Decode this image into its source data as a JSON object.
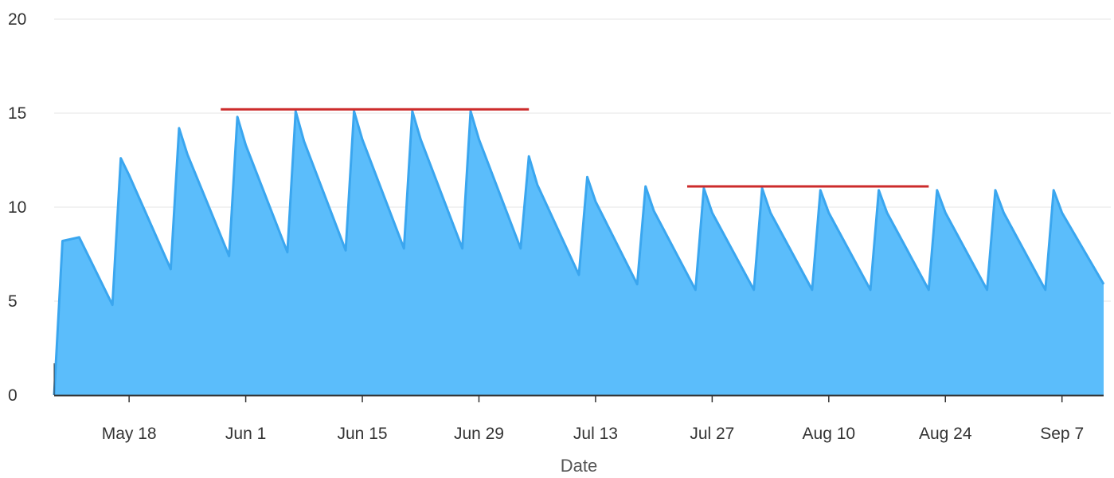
{
  "chart_data": {
    "type": "area",
    "xlabel": "Date",
    "ylabel": "",
    "ylim": [
      0,
      20
    ],
    "y_ticks": [
      "0",
      "5",
      "10",
      "15",
      "20"
    ],
    "x_tick_labels": [
      "May 18",
      "Jun 1",
      "Jun 15",
      "Jun 29",
      "Jul 13",
      "Jul 27",
      "Aug 10",
      "Aug 24",
      "Sep 7"
    ],
    "x_tick_dates": [
      "2020-05-18",
      "2020-06-01",
      "2020-06-15",
      "2020-06-29",
      "2020-07-13",
      "2020-07-27",
      "2020-08-10",
      "2020-08-24",
      "2020-09-07"
    ],
    "x_range": [
      "2020-05-09",
      "2020-09-12"
    ],
    "grid": "horizontal",
    "colors": {
      "area_fill": "#5bbdfb",
      "area_line": "#3aa6ef",
      "reference_line": "#cc2b2b",
      "grid": "#e6e6e6",
      "axis": "#333333"
    },
    "series": [
      {
        "points": [
          [
            "2020-05-09",
            0.0
          ],
          [
            "2020-05-10",
            8.2
          ],
          [
            "2020-05-12",
            8.4
          ],
          [
            "2020-05-16",
            4.8
          ],
          [
            "2020-05-17",
            12.6
          ],
          [
            "2020-05-18",
            11.7
          ],
          [
            "2020-05-23",
            6.7
          ],
          [
            "2020-05-24",
            14.2
          ],
          [
            "2020-05-25",
            12.8
          ],
          [
            "2020-05-30",
            7.4
          ],
          [
            "2020-05-31",
            14.8
          ],
          [
            "2020-06-01",
            13.3
          ],
          [
            "2020-06-06",
            7.6
          ],
          [
            "2020-06-07",
            15.1
          ],
          [
            "2020-06-08",
            13.5
          ],
          [
            "2020-06-13",
            7.7
          ],
          [
            "2020-06-14",
            15.1
          ],
          [
            "2020-06-15",
            13.6
          ],
          [
            "2020-06-20",
            7.8
          ],
          [
            "2020-06-21",
            15.1
          ],
          [
            "2020-06-22",
            13.6
          ],
          [
            "2020-06-27",
            7.8
          ],
          [
            "2020-06-28",
            15.1
          ],
          [
            "2020-06-29",
            13.6
          ],
          [
            "2020-07-04",
            7.8
          ],
          [
            "2020-07-05",
            12.7
          ],
          [
            "2020-07-06",
            11.2
          ],
          [
            "2020-07-11",
            6.4
          ],
          [
            "2020-07-12",
            11.6
          ],
          [
            "2020-07-13",
            10.3
          ],
          [
            "2020-07-18",
            5.9
          ],
          [
            "2020-07-19",
            11.1
          ],
          [
            "2020-07-20",
            9.8
          ],
          [
            "2020-07-25",
            5.6
          ],
          [
            "2020-07-26",
            11.0
          ],
          [
            "2020-07-27",
            9.7
          ],
          [
            "2020-08-01",
            5.6
          ],
          [
            "2020-08-02",
            11.0
          ],
          [
            "2020-08-03",
            9.7
          ],
          [
            "2020-08-08",
            5.6
          ],
          [
            "2020-08-09",
            10.9
          ],
          [
            "2020-08-10",
            9.7
          ],
          [
            "2020-08-15",
            5.6
          ],
          [
            "2020-08-16",
            10.9
          ],
          [
            "2020-08-17",
            9.7
          ],
          [
            "2020-08-22",
            5.6
          ],
          [
            "2020-08-23",
            10.9
          ],
          [
            "2020-08-24",
            9.7
          ],
          [
            "2020-08-29",
            5.6
          ],
          [
            "2020-08-30",
            10.9
          ],
          [
            "2020-08-31",
            9.7
          ],
          [
            "2020-09-05",
            5.6
          ],
          [
            "2020-09-06",
            10.9
          ],
          [
            "2020-09-07",
            9.7
          ],
          [
            "2020-09-12",
            5.9
          ]
        ]
      }
    ],
    "reference_lines": [
      {
        "y": 15.2,
        "x_start": "2020-05-29",
        "x_end": "2020-07-05"
      },
      {
        "y": 11.1,
        "x_start": "2020-07-24",
        "x_end": "2020-08-22"
      }
    ]
  }
}
